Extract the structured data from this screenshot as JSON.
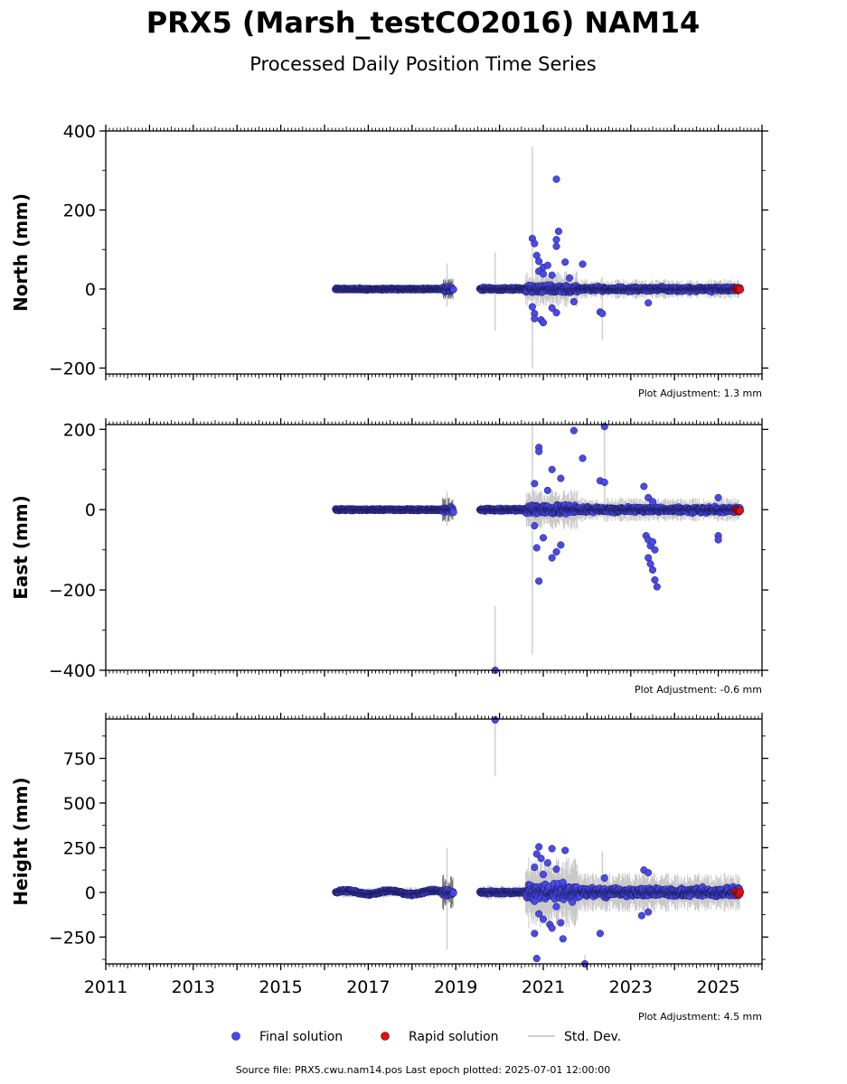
{
  "title": "PRX5 (Marsh_testCO2016) NAM14",
  "subtitle": "Processed Daily Position Time Series",
  "source_note": "Source file: PRX5.cwu.nam14.pos  Last epoch plotted: 2025-07-01 12:00:00",
  "legend": [
    {
      "label": "Final solution",
      "marker": "circle",
      "color": "#4a4ae8"
    },
    {
      "label": "Rapid solution",
      "marker": "circle",
      "color": "#e01010"
    },
    {
      "label": "Std. Dev.",
      "marker": "line",
      "color": "#cfcfcf"
    }
  ],
  "chart_data": [
    {
      "type": "scatter",
      "ylabel": "North (mm)",
      "xlim": [
        2011,
        2026
      ],
      "ylim": [
        -215,
        400
      ],
      "xticks": [
        2011,
        2013,
        2015,
        2017,
        2019,
        2021,
        2023,
        2025
      ],
      "yticks": [
        -200,
        0,
        200,
        400
      ],
      "yticklabels": [
        "−200",
        "0",
        "200",
        "400"
      ],
      "adjustment": "Plot Adjustment: 1.3 mm",
      "segments": [
        {
          "start": 2016.25,
          "end": 2018.7,
          "spread": 2
        },
        {
          "start": 2018.7,
          "end": 2018.95,
          "spread": 6
        },
        {
          "start": 2019.55,
          "end": 2020.6,
          "spread": 3
        },
        {
          "start": 2020.6,
          "end": 2021.8,
          "spread": 9
        },
        {
          "start": 2021.8,
          "end": 2025.5,
          "spread": 5
        }
      ],
      "outliers": [
        [
          2021.3,
          278
        ],
        [
          2021.35,
          146
        ],
        [
          2020.75,
          128
        ],
        [
          2020.8,
          115
        ],
        [
          2021.3,
          125
        ],
        [
          2021.3,
          108
        ],
        [
          2020.85,
          85
        ],
        [
          2020.9,
          70
        ],
        [
          2021.5,
          68
        ],
        [
          2021.0,
          55
        ],
        [
          2021.1,
          60
        ],
        [
          2021.9,
          63
        ],
        [
          2020.9,
          45
        ],
        [
          2021.0,
          38
        ],
        [
          2021.2,
          35
        ],
        [
          2021.6,
          28
        ],
        [
          2020.75,
          -45
        ],
        [
          2020.8,
          -62
        ],
        [
          2020.95,
          -78
        ],
        [
          2021.0,
          -85
        ],
        [
          2021.2,
          -48
        ],
        [
          2021.3,
          -60
        ],
        [
          2020.8,
          -75
        ],
        [
          2022.3,
          -58
        ],
        [
          2022.35,
          -62
        ],
        [
          2021.7,
          -32
        ],
        [
          2023.4,
          -35
        ]
      ],
      "stddev_bars": [
        [
          2018.8,
          -45,
          65
        ],
        [
          2019.9,
          -105,
          92
        ],
        [
          2020.75,
          -200,
          360
        ],
        [
          2022.35,
          -130,
          30
        ]
      ],
      "rapid": {
        "start": 2025.4,
        "end": 2025.5,
        "value": 0
      }
    },
    {
      "type": "scatter",
      "ylabel": "East (mm)",
      "xlim": [
        2011,
        2026
      ],
      "ylim": [
        -400,
        212
      ],
      "xticks": [
        2011,
        2013,
        2015,
        2017,
        2019,
        2021,
        2023,
        2025
      ],
      "yticks": [
        -400,
        -200,
        0,
        200
      ],
      "yticklabels": [
        "−400",
        "−200",
        "0",
        "200"
      ],
      "adjustment": "Plot Adjustment: -0.6 mm",
      "segments": [
        {
          "start": 2016.25,
          "end": 2018.7,
          "spread": 2
        },
        {
          "start": 2018.7,
          "end": 2018.95,
          "spread": 6
        },
        {
          "start": 2019.55,
          "end": 2020.6,
          "spread": 3
        },
        {
          "start": 2020.6,
          "end": 2021.8,
          "spread": 10
        },
        {
          "start": 2021.8,
          "end": 2025.5,
          "spread": 6
        }
      ],
      "outliers": [
        [
          2021.7,
          197
        ],
        [
          2022.4,
          207
        ],
        [
          2020.9,
          155
        ],
        [
          2020.9,
          145
        ],
        [
          2021.2,
          100
        ],
        [
          2021.9,
          128
        ],
        [
          2021.4,
          78
        ],
        [
          2020.8,
          65
        ],
        [
          2021.1,
          48
        ],
        [
          2022.3,
          72
        ],
        [
          2022.4,
          68
        ],
        [
          2023.3,
          58
        ],
        [
          2020.8,
          -40
        ],
        [
          2021.0,
          -70
        ],
        [
          2021.2,
          -120
        ],
        [
          2021.3,
          -105
        ],
        [
          2021.4,
          -88
        ],
        [
          2020.85,
          -95
        ],
        [
          2020.9,
          -178
        ],
        [
          2019.9,
          -400
        ],
        [
          2023.35,
          -65
        ],
        [
          2023.4,
          -75
        ],
        [
          2023.45,
          -90
        ],
        [
          2023.4,
          -120
        ],
        [
          2023.45,
          -135
        ],
        [
          2023.5,
          -150
        ],
        [
          2023.55,
          -175
        ],
        [
          2023.6,
          -192
        ],
        [
          2023.5,
          -80
        ],
        [
          2023.55,
          -100
        ],
        [
          2025.0,
          -65
        ],
        [
          2025.0,
          -75
        ],
        [
          2023.4,
          30
        ],
        [
          2023.5,
          20
        ],
        [
          2025.0,
          30
        ]
      ],
      "stddev_bars": [
        [
          2018.8,
          -40,
          45
        ],
        [
          2019.9,
          -400,
          -240
        ],
        [
          2020.75,
          -360,
          212
        ],
        [
          2022.4,
          -30,
          212
        ]
      ],
      "rapid": {
        "start": 2025.4,
        "end": 2025.5,
        "value": -2
      }
    },
    {
      "type": "scatter",
      "ylabel": "Height (mm)",
      "xlim": [
        2011,
        2026
      ],
      "ylim": [
        -400,
        970
      ],
      "xticks": [
        2011,
        2013,
        2015,
        2017,
        2019,
        2021,
        2023,
        2025
      ],
      "xticklabels": [
        "2011",
        "2013",
        "2015",
        "2017",
        "2019",
        "2021",
        "2023",
        "2025"
      ],
      "yticks": [
        -250,
        0,
        250,
        500,
        750
      ],
      "yticklabels": [
        "−250",
        "0",
        "250",
        "500",
        "750"
      ],
      "adjustment": "Plot Adjustment: 4.5 mm",
      "segments": [
        {
          "start": 2016.25,
          "end": 2018.7,
          "spread": 6
        },
        {
          "start": 2018.7,
          "end": 2018.95,
          "spread": 20
        },
        {
          "start": 2019.55,
          "end": 2020.6,
          "spread": 8
        },
        {
          "start": 2020.6,
          "end": 2021.8,
          "spread": 40
        },
        {
          "start": 2021.8,
          "end": 2025.5,
          "spread": 22
        }
      ],
      "outliers": [
        [
          2019.9,
          965
        ],
        [
          2020.9,
          255
        ],
        [
          2021.2,
          245
        ],
        [
          2021.5,
          235
        ],
        [
          2020.85,
          215
        ],
        [
          2020.95,
          190
        ],
        [
          2021.1,
          165
        ],
        [
          2020.8,
          140
        ],
        [
          2021.3,
          130
        ],
        [
          2021.0,
          100
        ],
        [
          2022.4,
          80
        ],
        [
          2023.3,
          125
        ],
        [
          2023.4,
          110
        ],
        [
          2020.9,
          -120
        ],
        [
          2021.0,
          -150
        ],
        [
          2021.15,
          -180
        ],
        [
          2021.2,
          -200
        ],
        [
          2021.4,
          -170
        ],
        [
          2020.8,
          -230
        ],
        [
          2022.3,
          -230
        ],
        [
          2021.45,
          -260
        ],
        [
          2020.85,
          -370
        ],
        [
          2021.95,
          -400
        ],
        [
          2023.25,
          -130
        ],
        [
          2023.4,
          -110
        ],
        [
          2020.8,
          -50
        ],
        [
          2021.3,
          -80
        ]
      ],
      "stddev_bars": [
        [
          2018.8,
          -320,
          250
        ],
        [
          2019.9,
          650,
          970
        ],
        [
          2022.35,
          -80,
          230
        ],
        [
          2021.95,
          -400,
          -350
        ]
      ],
      "rapid": {
        "start": 2025.4,
        "end": 2025.5,
        "value": -5
      }
    }
  ]
}
